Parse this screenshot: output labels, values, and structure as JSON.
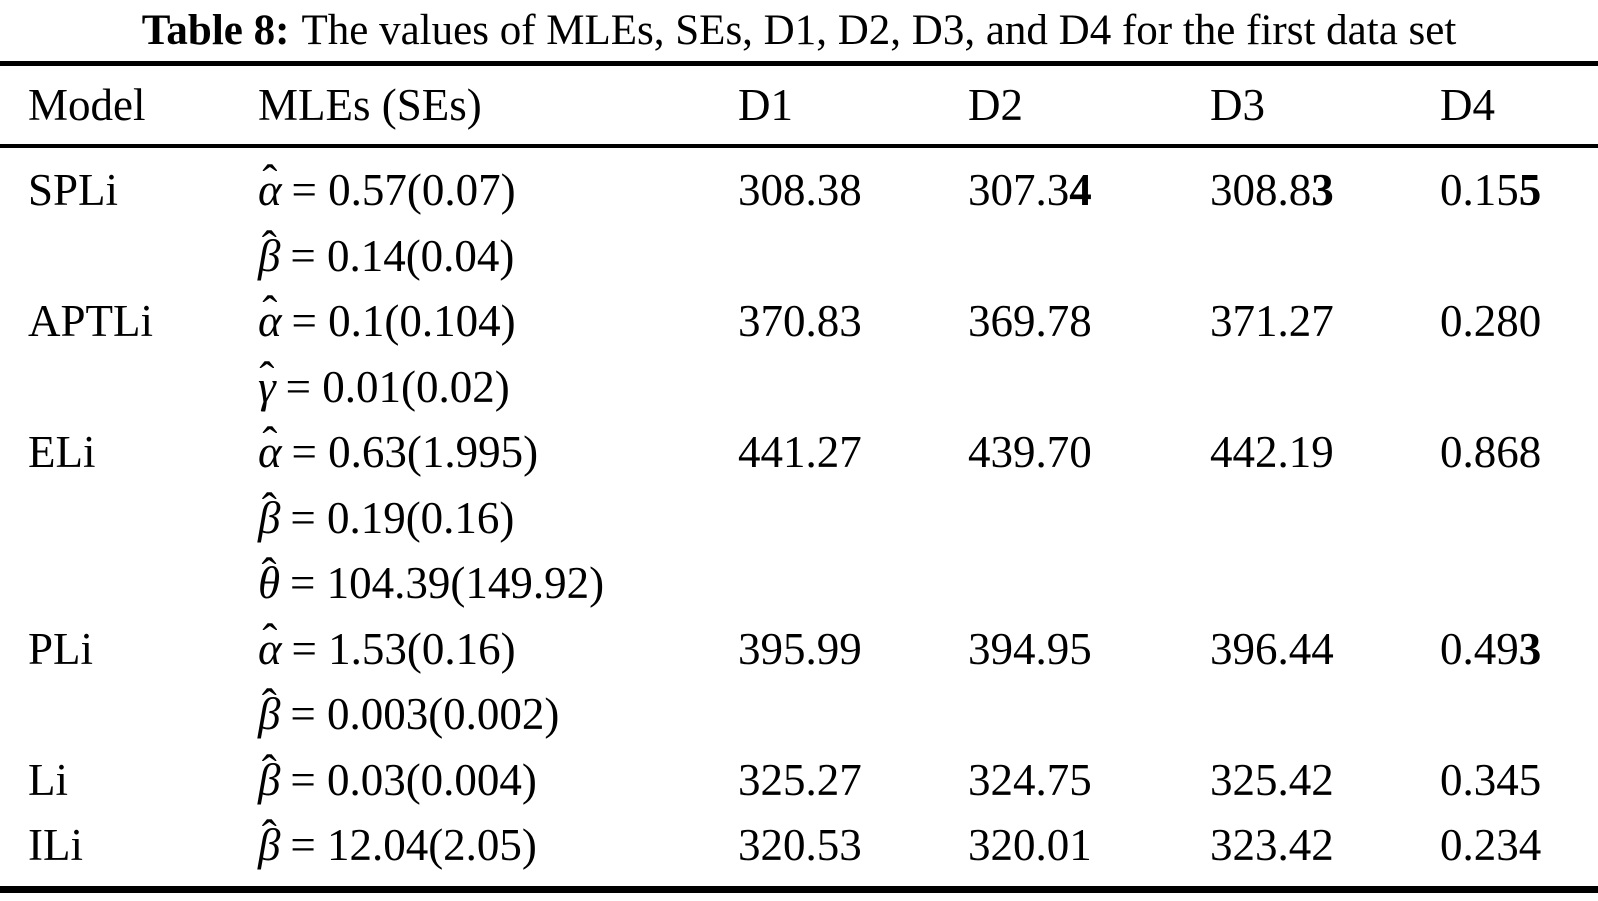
{
  "title": {
    "label": "Table 8:",
    "text": "The values of MLEs, SEs, D1, D2, D3, and D4 for the first data set"
  },
  "math": {
    "hat": "ˆ"
  },
  "table": {
    "headers": {
      "model": "Model",
      "mles": "MLEs (SEs)",
      "d1": "D1",
      "d2": "D2",
      "d3": "D3",
      "d4": "D4"
    },
    "rows": [
      {
        "model": "SPLi",
        "params": [
          {
            "sym": "α",
            "expr": "= 0.57(0.07)"
          },
          {
            "sym": "β",
            "expr": "= 0.14(0.04)"
          }
        ],
        "d1": {
          "text": "308.38",
          "bold": ""
        },
        "d2": {
          "text": "307.3",
          "bold": "4"
        },
        "d3": {
          "text": "308.8",
          "bold": "3"
        },
        "d4": {
          "text": "0.15",
          "bold": "5"
        }
      },
      {
        "model": "APTLi",
        "params": [
          {
            "sym": "α",
            "expr": "= 0.1(0.104)"
          },
          {
            "sym": "γ",
            "expr": "= 0.01(0.02)"
          }
        ],
        "d1": {
          "text": "370.83",
          "bold": ""
        },
        "d2": {
          "text": "369.78",
          "bold": ""
        },
        "d3": {
          "text": "371.27",
          "bold": ""
        },
        "d4": {
          "text": "0.280",
          "bold": ""
        }
      },
      {
        "model": "ELi",
        "params": [
          {
            "sym": "α",
            "expr": "= 0.63(1.995)"
          },
          {
            "sym": "β",
            "expr": "= 0.19(0.16)"
          },
          {
            "sym": "θ",
            "expr": "= 104.39(149.92)"
          }
        ],
        "d1": {
          "text": "441.27",
          "bold": ""
        },
        "d2": {
          "text": "439.70",
          "bold": ""
        },
        "d3": {
          "text": "442.19",
          "bold": ""
        },
        "d4": {
          "text": "0.868",
          "bold": ""
        }
      },
      {
        "model": "PLi",
        "params": [
          {
            "sym": "α",
            "expr": "= 1.53(0.16)"
          },
          {
            "sym": "β",
            "expr": "= 0.003(0.002)"
          }
        ],
        "d1": {
          "text": "395.99",
          "bold": ""
        },
        "d2": {
          "text": "394.95",
          "bold": ""
        },
        "d3": {
          "text": "396.44",
          "bold": ""
        },
        "d4": {
          "text": "0.49",
          "bold": "3"
        }
      },
      {
        "model": "Li",
        "params": [
          {
            "sym": "β",
            "expr": "= 0.03(0.004)"
          }
        ],
        "d1": {
          "text": "325.27",
          "bold": ""
        },
        "d2": {
          "text": "324.75",
          "bold": ""
        },
        "d3": {
          "text": "325.42",
          "bold": ""
        },
        "d4": {
          "text": "0.345",
          "bold": ""
        }
      },
      {
        "model": "ILi",
        "params": [
          {
            "sym": "β",
            "expr": "= 12.04(2.05)"
          }
        ],
        "d1": {
          "text": "320.53",
          "bold": ""
        },
        "d2": {
          "text": "320.01",
          "bold": ""
        },
        "d3": {
          "text": "323.42",
          "bold": ""
        },
        "d4": {
          "text": "0.234",
          "bold": ""
        }
      }
    ]
  }
}
